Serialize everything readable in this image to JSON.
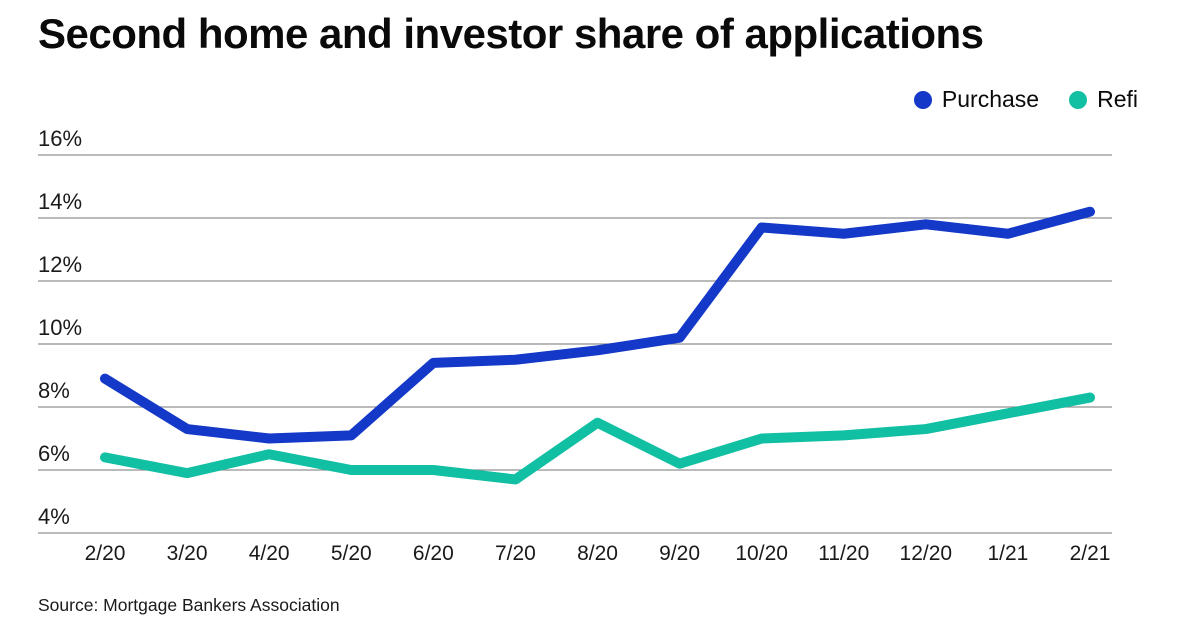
{
  "title": "Second home and investor share of applications",
  "source": "Source: Mortgage Bankers Association",
  "legend": [
    {
      "label": "Purchase",
      "color": "#1438c8"
    },
    {
      "label": "Refi",
      "color": "#11bfa2"
    }
  ],
  "colors": {
    "purchase_line": "#1438c8",
    "refi_line": "#11bfa2",
    "gridline": "#909090",
    "axis_text": "#1a1a1a",
    "background": "#ffffff"
  },
  "chart_data": {
    "type": "line",
    "title": "Second home and investor share of applications",
    "categories": [
      "2/20",
      "3/20",
      "4/20",
      "5/20",
      "6/20",
      "7/20",
      "8/20",
      "9/20",
      "10/20",
      "11/20",
      "12/20",
      "1/21",
      "2/21"
    ],
    "series": [
      {
        "name": "Purchase",
        "color": "#1438c8",
        "values": [
          8.9,
          7.3,
          7.0,
          7.1,
          9.4,
          9.5,
          9.8,
          10.2,
          13.7,
          13.5,
          13.8,
          13.5,
          14.2
        ]
      },
      {
        "name": "Refi",
        "color": "#11bfa2",
        "values": [
          6.4,
          5.9,
          6.5,
          6.0,
          6.0,
          5.7,
          7.5,
          6.2,
          7.0,
          7.1,
          7.3,
          7.8,
          8.3
        ]
      }
    ],
    "xlabel": "",
    "ylabel": "",
    "yticks": [
      4,
      6,
      8,
      10,
      12,
      14,
      16
    ],
    "ytick_suffix": "%",
    "ylim": [
      4,
      16
    ],
    "grid": true,
    "legend_position": "top-right",
    "source": "Source: Mortgage Bankers Association"
  }
}
